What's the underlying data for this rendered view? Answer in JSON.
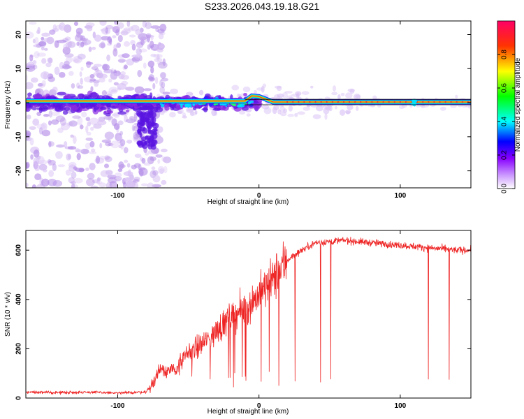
{
  "title": "S233.2026.043.19.18.G21",
  "chart_data": [
    {
      "type": "heatmap",
      "xlabel": "Height of straight line (km)",
      "ylabel": "Frequency (Hz)",
      "xlim": [
        -165,
        150
      ],
      "ylim": [
        -25,
        24
      ],
      "x_ticks": [
        -100,
        0,
        100
      ],
      "y_ticks": [
        -20,
        -10,
        0,
        10,
        20
      ],
      "colorbar": {
        "label": "Normalized spectral amplitude",
        "range": [
          0,
          1
        ],
        "ticks": [
          0.0,
          0.2,
          0.4,
          0.6,
          0.8
        ],
        "tick_labels": [
          "0.0",
          "0.2",
          "0.4",
          "0.6",
          "0.8"
        ],
        "colors": [
          "#ffffff",
          "#9900ff",
          "#0000ff",
          "#00ffff",
          "#00ff00",
          "#ffff00",
          "#ff0000",
          "#ff0066"
        ]
      },
      "ridge": {
        "description": "strong signal line near 0 Hz",
        "points": [
          [
            -165,
            0.5
          ],
          [
            -10,
            0.5
          ],
          [
            -5,
            2
          ],
          [
            0,
            1.8
          ],
          [
            10,
            0.2
          ],
          [
            150,
            0.2
          ]
        ]
      }
    },
    {
      "type": "line",
      "xlabel": "Height of straight line (km)",
      "ylabel": "SNR (10 * v/v)",
      "xlim": [
        -165,
        150
      ],
      "ylim": [
        0,
        680
      ],
      "x_ticks": [
        -100,
        0,
        100
      ],
      "y_ticks": [
        0,
        200,
        400,
        600
      ],
      "color": "#ee2222",
      "x": [
        -165,
        -150,
        -120,
        -100,
        -80,
        -75,
        -70,
        -60,
        -50,
        -40,
        -30,
        -20,
        -10,
        0,
        10,
        20,
        30,
        40,
        60,
        80,
        100,
        120,
        140,
        150
      ],
      "y": [
        25,
        22,
        24,
        20,
        25,
        60,
        120,
        110,
        180,
        220,
        270,
        330,
        360,
        420,
        480,
        560,
        600,
        630,
        640,
        630,
        620,
        610,
        600,
        600
      ]
    }
  ]
}
